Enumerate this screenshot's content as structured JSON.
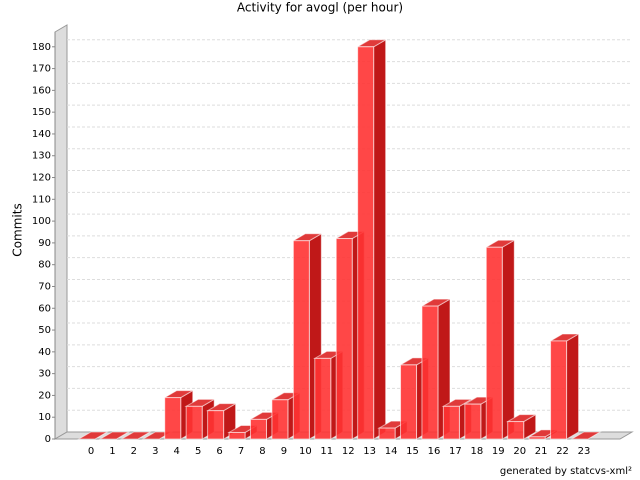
{
  "chart_data": {
    "type": "bar3d",
    "title": "Activity for avogl (per hour)",
    "y_label": "Commits",
    "footer": "generated by statcvs-xml²",
    "categories": [
      "0",
      "1",
      "2",
      "3",
      "4",
      "5",
      "6",
      "7",
      "8",
      "9",
      "10",
      "11",
      "12",
      "13",
      "14",
      "15",
      "16",
      "17",
      "18",
      "19",
      "20",
      "21",
      "22",
      "23"
    ],
    "values": [
      0,
      0,
      0,
      0,
      19,
      15,
      13,
      3,
      9,
      18,
      91,
      37,
      92,
      180,
      5,
      34,
      61,
      15,
      16,
      88,
      8,
      1,
      45,
      0
    ],
    "color": "#ff3333",
    "ylim": [
      0,
      190
    ],
    "yticks": [
      0,
      10,
      20,
      30,
      40,
      50,
      60,
      70,
      80,
      90,
      100,
      110,
      120,
      130,
      140,
      150,
      160,
      170,
      180
    ],
    "grid": true
  }
}
